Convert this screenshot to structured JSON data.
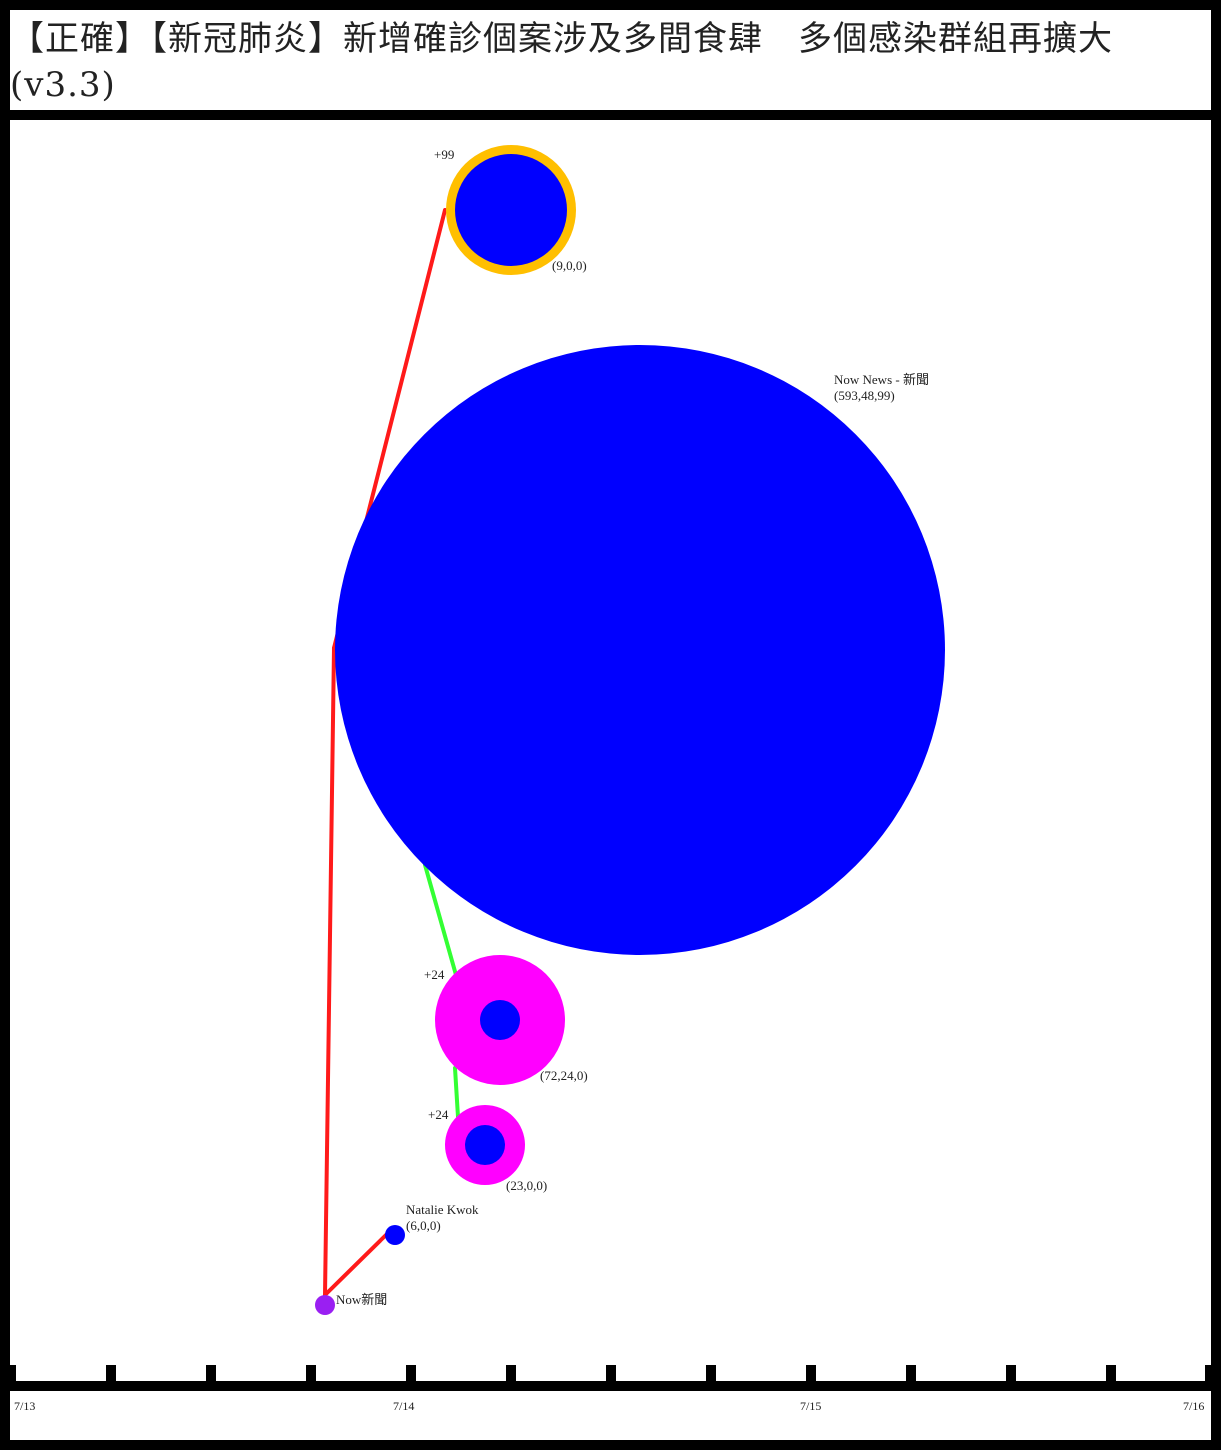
{
  "post": {
    "title": "【正確】【新冠肺炎】新增確診個案涉及多間食肆　多個感染群組再擴大(v3.3)"
  },
  "colors": {
    "node_blue": "#0000ff",
    "share_magenta": "#ff00ff",
    "node_purple": "#9a1ff2",
    "ring_gold": "#ffbf00",
    "edge_red": "#ff1a1a",
    "edge_green": "#33ff33",
    "frame_black": "#000000"
  },
  "nodes": [
    {
      "id": "n_top",
      "name": "",
      "stats": "(9,0,0)",
      "badge": "+99"
    },
    {
      "id": "n_big",
      "name": "Now News - 新聞",
      "stats": "(593,48,99)",
      "badge": ""
    },
    {
      "id": "n_mid1",
      "name": "",
      "stats": "(72,24,0)",
      "badge": "+24"
    },
    {
      "id": "n_mid2",
      "name": "",
      "stats": "(23,0,0)",
      "badge": "+24"
    },
    {
      "id": "n_natalie",
      "name": "Natalie Kwok",
      "stats": "(6,0,0)",
      "badge": ""
    },
    {
      "id": "n_root",
      "name": "Now新聞",
      "stats": "",
      "badge": ""
    }
  ],
  "edges": [
    {
      "from": "n_root",
      "to": "n_big",
      "color": "red"
    },
    {
      "from": "n_big",
      "to": "n_top",
      "color": "red"
    },
    {
      "from": "n_root",
      "to": "n_natalie",
      "color": "red"
    },
    {
      "from": "n_big",
      "to": "n_mid1",
      "color": "green"
    },
    {
      "from": "n_mid1",
      "to": "n_mid2",
      "color": "green"
    }
  ],
  "timeline": {
    "labels": [
      "7/13",
      "7/14",
      "7/15",
      "7/16"
    ]
  }
}
